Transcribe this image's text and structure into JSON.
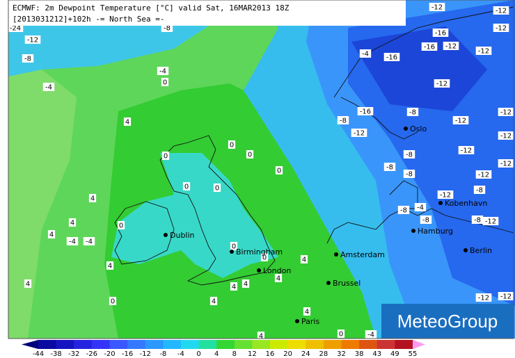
{
  "header": {
    "line1": "ECMWF: 2m Dewpoint Temperature [°C] valid Sat, 16MAR2013 18Z",
    "line2": "[2013031212]+102h -= North Sea =-"
  },
  "contour_labels": [
    "-12",
    "-12",
    "-24",
    "-8",
    "-12",
    "-16",
    "-12",
    "-8",
    "-4",
    "-16",
    "-16",
    "-12",
    "-12",
    "-4",
    "0",
    "-4",
    "-12",
    "-16",
    "-8",
    "-8",
    "-12",
    "-12",
    "-12",
    "4",
    "0",
    "0",
    "0",
    "0",
    "-8",
    "-8",
    "-12",
    "-12",
    "-8",
    "-12",
    "-12",
    "0",
    "0",
    "-8",
    "4",
    "-8",
    "-4",
    "-12",
    "-8",
    "-8",
    "-12",
    "4",
    "0",
    "4",
    "-4",
    "-4",
    "0",
    "4",
    "0",
    "4",
    "4",
    "4",
    "4",
    "4",
    "0",
    "4",
    "4",
    "0",
    "-4",
    "4",
    "-12",
    "-12",
    "-12"
  ],
  "cities": [
    "Oslo",
    "Kobenhavn",
    "Hamburg",
    "Berlin",
    "Dublin",
    "Birmingham",
    "London",
    "Amsterdam",
    "Brussel",
    "Paris"
  ],
  "legend": {
    "ticks": [
      -44,
      -38,
      -32,
      -26,
      -20,
      -16,
      -12,
      -8,
      -4,
      0,
      4,
      8,
      12,
      16,
      20,
      24,
      28,
      32,
      38,
      43,
      49,
      55
    ],
    "colors": [
      "#00007a",
      "#0a0aa0",
      "#1414c0",
      "#2424e0",
      "#3434f8",
      "#3a58ff",
      "#3378ff",
      "#2a98ff",
      "#22b8ff",
      "#22d8f0",
      "#22e0a0",
      "#33d633",
      "#66e033",
      "#99e622",
      "#ccea00",
      "#eedd00",
      "#eec000",
      "#ee9f00",
      "#ee7a00",
      "#dd5511",
      "#cc3333",
      "#b31122",
      "#cc3399",
      "#ee66cc",
      "#ff99ee"
    ]
  },
  "logo": "MeteoGroup"
}
